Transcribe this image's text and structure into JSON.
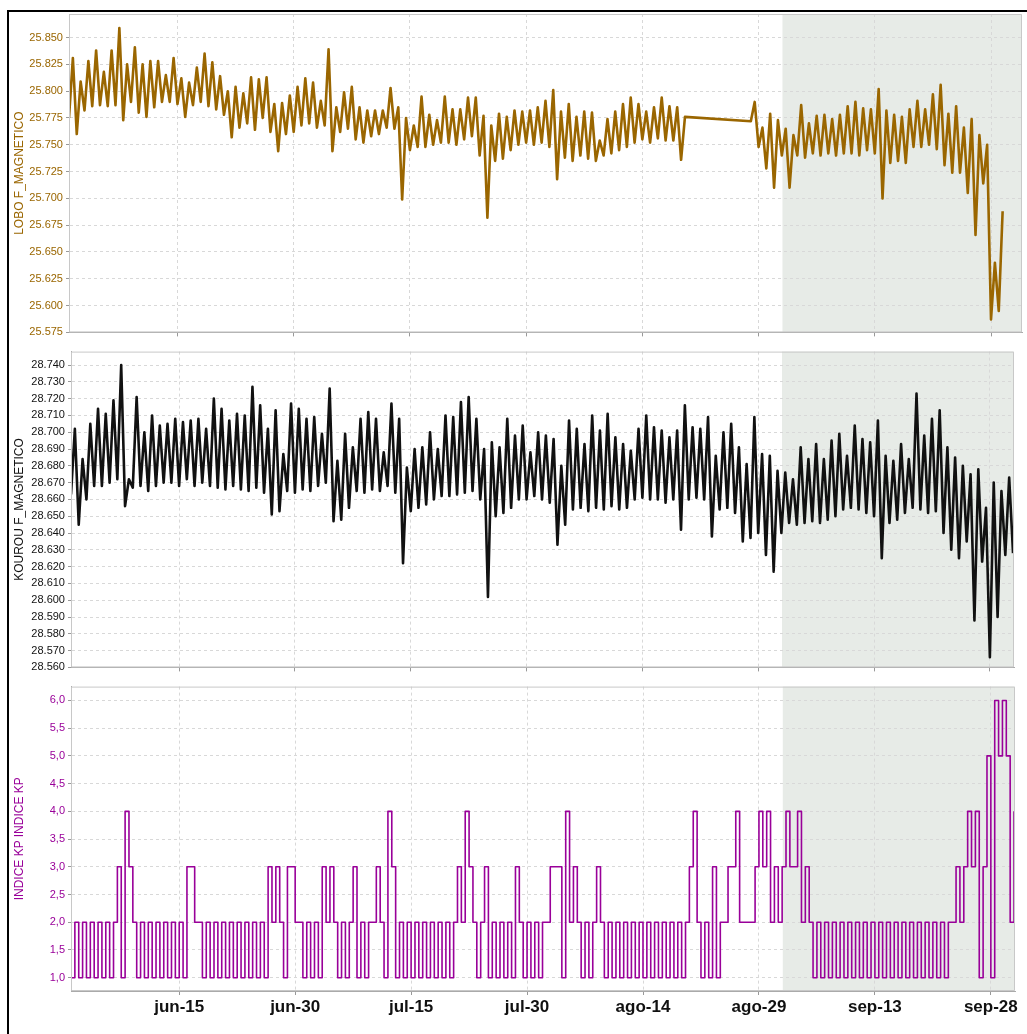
{
  "chart_data": [
    {
      "type": "line",
      "ylabel": "LOBO F_MAGNETICO",
      "color": "#9a6600",
      "grid": true,
      "marker": "none",
      "tick_labels": "y",
      "xlim": [
        "--06-01",
        "--10-02"
      ],
      "ylim": [
        25575,
        25872
      ],
      "xticks": [
        {
          "value": "--06-15",
          "label": "jun-15"
        },
        {
          "value": "--06-30",
          "label": "jun-30"
        },
        {
          "value": "--07-15",
          "label": "jul-15"
        },
        {
          "value": "--07-30",
          "label": "jul-30"
        },
        {
          "value": "--08-14",
          "label": "ago-14"
        },
        {
          "value": "--08-29",
          "label": "ago-29"
        },
        {
          "value": "--09-13",
          "label": "sep-13"
        },
        {
          "value": "--09-28",
          "label": "sep-28"
        }
      ],
      "yticks": [
        {
          "value": 25575,
          "label": "25.575"
        },
        {
          "value": 25600,
          "label": "25.600"
        },
        {
          "value": 25625,
          "label": "25.625"
        },
        {
          "value": 25650,
          "label": "25.650"
        },
        {
          "value": 25675,
          "label": "25.675"
        },
        {
          "value": 25700,
          "label": "25.700"
        },
        {
          "value": 25725,
          "label": "25.725"
        },
        {
          "value": 25750,
          "label": "25.750"
        },
        {
          "value": 25775,
          "label": "25.775"
        },
        {
          "value": 25800,
          "label": "25.800"
        },
        {
          "value": 25825,
          "label": "25.825"
        },
        {
          "value": 25850,
          "label": "25.850"
        }
      ],
      "bands": [
        {
          "axis": "x",
          "from": "--09-01T02:00",
          "to": "--10-02",
          "color": "#e7ebe7"
        }
      ],
      "x": [
        "--06-01T00:00",
        "--06-01T12:00",
        "--06-02T00:00",
        "--06-02T12:00",
        "--06-03T00:00",
        "--06-03T12:00",
        "--06-04T00:00",
        "--06-04T12:00",
        "--06-05T00:00",
        "--06-05T12:00",
        "--06-06T00:00",
        "--06-06T12:00",
        "--06-07T00:00",
        "--06-07T12:00",
        "--06-08T00:00",
        "--06-08T12:00",
        "--06-09T00:00",
        "--06-09T12:00",
        "--06-10T00:00",
        "--06-10T12:00",
        "--06-11T00:00",
        "--06-11T12:00",
        "--06-12T00:00",
        "--06-12T12:00",
        "--06-13T00:00",
        "--06-13T12:00",
        "--06-14T00:00",
        "--06-14T12:00",
        "--06-15T00:00",
        "--06-15T12:00",
        "--06-16T00:00",
        "--06-16T12:00",
        "--06-17T00:00",
        "--06-17T12:00",
        "--06-18T00:00",
        "--06-18T12:00",
        "--06-19T00:00",
        "--06-19T12:00",
        "--06-20T00:00",
        "--06-20T12:00",
        "--06-21T00:00",
        "--06-21T12:00",
        "--06-22T00:00",
        "--06-22T12:00",
        "--06-23T00:00",
        "--06-23T12:00",
        "--06-24T00:00",
        "--06-24T12:00",
        "--06-25T00:00",
        "--06-25T12:00",
        "--06-26T00:00",
        "--06-26T12:00",
        "--06-27T00:00",
        "--06-27T12:00",
        "--06-28T00:00",
        "--06-28T12:00",
        "--06-29T00:00",
        "--06-29T12:00",
        "--06-30T00:00",
        "--06-30T12:00",
        "--07-01T00:00",
        "--07-01T12:00",
        "--07-02T00:00",
        "--07-02T12:00",
        "--07-03T00:00",
        "--07-03T12:00",
        "--07-04T00:00",
        "--07-04T12:00",
        "--07-05T00:00",
        "--07-05T12:00",
        "--07-06T00:00",
        "--07-06T12:00",
        "--07-07T00:00",
        "--07-07T12:00",
        "--07-08T00:00",
        "--07-08T12:00",
        "--07-09T00:00",
        "--07-09T12:00",
        "--07-10T00:00",
        "--07-10T12:00",
        "--07-11T00:00",
        "--07-11T12:00",
        "--07-12T00:00",
        "--07-12T12:00",
        "--07-13T00:00",
        "--07-13T12:00",
        "--07-14T00:00",
        "--07-14T12:00",
        "--07-15T00:00",
        "--07-15T12:00",
        "--07-16T00:00",
        "--07-16T12:00",
        "--07-17T00:00",
        "--07-17T12:00",
        "--07-18T00:00",
        "--07-18T12:00",
        "--07-19T00:00",
        "--07-19T12:00",
        "--07-20T00:00",
        "--07-20T12:00",
        "--07-21T00:00",
        "--07-21T12:00",
        "--07-22T00:00",
        "--07-22T12:00",
        "--07-23T00:00",
        "--07-23T12:00",
        "--07-24T00:00",
        "--07-24T12:00",
        "--07-25T00:00",
        "--07-25T12:00",
        "--07-26T00:00",
        "--07-26T12:00",
        "--07-27T00:00",
        "--07-27T12:00",
        "--07-28T00:00",
        "--07-28T12:00",
        "--07-29T00:00",
        "--07-29T12:00",
        "--07-30T00:00",
        "--07-30T12:00",
        "--07-31T00:00",
        "--07-31T12:00",
        "--08-01T00:00",
        "--08-01T12:00",
        "--08-02T00:00",
        "--08-02T12:00",
        "--08-03T00:00",
        "--08-03T12:00",
        "--08-04T00:00",
        "--08-04T12:00",
        "--08-05T00:00",
        "--08-05T12:00",
        "--08-06T00:00",
        "--08-06T12:00",
        "--08-07T00:00",
        "--08-07T12:00",
        "--08-08T00:00",
        "--08-08T12:00",
        "--08-09T00:00",
        "--08-09T12:00",
        "--08-10T00:00",
        "--08-10T12:00",
        "--08-11T00:00",
        "--08-11T12:00",
        "--08-12T00:00",
        "--08-12T12:00",
        "--08-13T00:00",
        "--08-13T12:00",
        "--08-14T00:00",
        "--08-14T12:00",
        "--08-15T00:00",
        "--08-15T12:00",
        "--08-16T00:00",
        "--08-16T12:00",
        "--08-17T00:00",
        "--08-17T12:00",
        "--08-18T00:00",
        "--08-18T12:00",
        "--08-19T00:00",
        "--08-19T12:00",
        "--08-28T00:00",
        "--08-28T12:00",
        "--08-29T00:00",
        "--08-29T12:00",
        "--08-30T00:00",
        "--08-30T12:00",
        "--08-31T00:00",
        "--08-31T12:00",
        "--09-01T00:00",
        "--09-01T12:00",
        "--09-02T00:00",
        "--09-02T12:00",
        "--09-03T00:00",
        "--09-03T12:00",
        "--09-04T00:00",
        "--09-04T12:00",
        "--09-05T00:00",
        "--09-05T12:00",
        "--09-06T00:00",
        "--09-06T12:00",
        "--09-07T00:00",
        "--09-07T12:00",
        "--09-08T00:00",
        "--09-08T12:00",
        "--09-09T00:00",
        "--09-09T12:00",
        "--09-10T00:00",
        "--09-10T12:00",
        "--09-11T00:00",
        "--09-11T12:00",
        "--09-12T00:00",
        "--09-12T12:00",
        "--09-13T00:00",
        "--09-13T12:00",
        "--09-14T00:00",
        "--09-14T12:00",
        "--09-15T00:00",
        "--09-15T12:00",
        "--09-16T00:00",
        "--09-16T12:00",
        "--09-17T00:00",
        "--09-17T12:00",
        "--09-18T00:00",
        "--09-18T12:00",
        "--09-19T00:00",
        "--09-19T12:00",
        "--09-20T00:00",
        "--09-20T12:00",
        "--09-21T00:00",
        "--09-21T12:00",
        "--09-22T00:00",
        "--09-22T12:00",
        "--09-23T00:00",
        "--09-23T12:00",
        "--09-24T00:00",
        "--09-24T12:00",
        "--09-25T00:00",
        "--09-25T12:00",
        "--09-26T00:00",
        "--09-26T12:00",
        "--09-27T00:00",
        "--09-27T12:00",
        "--09-28T00:00",
        "--09-28T12:00",
        "--09-29T00:00",
        "--09-29T12:00"
      ],
      "values": [
        25775,
        25831,
        25760,
        25809,
        25782,
        25828,
        25786,
        25838,
        25787,
        25818,
        25786,
        25838,
        25787,
        25859,
        25773,
        25825,
        25790,
        25841,
        25780,
        25825,
        25776,
        25828,
        25785,
        25828,
        25790,
        25815,
        25790,
        25831,
        25788,
        25812,
        25776,
        25808,
        25787,
        25822,
        25790,
        25835,
        25786,
        25827,
        25783,
        25814,
        25778,
        25800,
        25757,
        25804,
        25766,
        25798,
        25770,
        25813,
        25764,
        25811,
        25775,
        25813,
        25762,
        25788,
        25744,
        25789,
        25760,
        25796,
        25762,
        25804,
        25768,
        25812,
        25770,
        25808,
        25766,
        25791,
        25768,
        25839,
        25744,
        25785,
        25762,
        25799,
        25765,
        25804,
        25755,
        25785,
        25752,
        25782,
        25758,
        25782,
        25760,
        25782,
        25766,
        25803,
        25765,
        25785,
        25699,
        25775,
        25745,
        25768,
        25748,
        25795,
        25748,
        25778,
        25750,
        25773,
        25752,
        25795,
        25752,
        25783,
        25750,
        25783,
        25755,
        25794,
        25758,
        25794,
        25740,
        25777,
        25682,
        25768,
        25735,
        25779,
        25737,
        25776,
        25745,
        25782,
        25750,
        25781,
        25752,
        25782,
        25750,
        25785,
        25752,
        25791,
        25748,
        25801,
        25718,
        25781,
        25738,
        25788,
        25735,
        25776,
        25740,
        25781,
        25737,
        25780,
        25735,
        25754,
        25740,
        25774,
        25742,
        25781,
        25745,
        25788,
        25748,
        25794,
        25752,
        25788,
        25755,
        25781,
        25752,
        25785,
        25756,
        25794,
        25754,
        25786,
        25754,
        25785,
        25736,
        25776,
        25772,
        25790,
        25748,
        25766,
        25728,
        25779,
        25710,
        25773,
        25740,
        25765,
        25710,
        25759,
        25740,
        25787,
        25738,
        25770,
        25742,
        25777,
        25740,
        25778,
        25742,
        25774,
        25740,
        25778,
        25742,
        25786,
        25742,
        25790,
        25740,
        25784,
        25745,
        25783,
        25742,
        25802,
        25700,
        25782,
        25733,
        25778,
        25735,
        25776,
        25733,
        25783,
        25748,
        25791,
        25748,
        25783,
        25750,
        25797,
        25746,
        25806,
        25731,
        25779,
        25724,
        25786,
        25724,
        25766,
        25705,
        25774,
        25666,
        25759,
        25714,
        25750,
        25587,
        25640,
        25595,
        25688
      ]
    },
    {
      "type": "line",
      "ylabel": "KOUROU F_MAGNETICO",
      "color": "#111111",
      "grid": true,
      "marker": "none",
      "tick_labels": "y",
      "xlim": [
        "--06-01",
        "--10-01T03:00"
      ],
      "ylim": [
        28560,
        28748
      ],
      "xticks": [
        {
          "value": "--06-15",
          "label": "jun-15"
        },
        {
          "value": "--06-30",
          "label": "jun-30"
        },
        {
          "value": "--07-15",
          "label": "jul-15"
        },
        {
          "value": "--07-30",
          "label": "jul-30"
        },
        {
          "value": "--08-14",
          "label": "ago-14"
        },
        {
          "value": "--08-29",
          "label": "ago-29"
        },
        {
          "value": "--09-13",
          "label": "sep-13"
        },
        {
          "value": "--09-28",
          "label": "sep-28"
        }
      ],
      "yticks": [
        {
          "value": 28560,
          "label": "28.560"
        },
        {
          "value": 28570,
          "label": "28.570"
        },
        {
          "value": 28580,
          "label": "28.580"
        },
        {
          "value": 28590,
          "label": "28.590"
        },
        {
          "value": 28600,
          "label": "28.600"
        },
        {
          "value": 28610,
          "label": "28.610"
        },
        {
          "value": 28620,
          "label": "28.620"
        },
        {
          "value": 28630,
          "label": "28.630"
        },
        {
          "value": 28640,
          "label": "28.640"
        },
        {
          "value": 28650,
          "label": "28.650"
        },
        {
          "value": 28660,
          "label": "28.660"
        },
        {
          "value": 28670,
          "label": "28.670"
        },
        {
          "value": 28680,
          "label": "28.680"
        },
        {
          "value": 28690,
          "label": "28.690"
        },
        {
          "value": 28700,
          "label": "28.700"
        },
        {
          "value": 28710,
          "label": "28.710"
        },
        {
          "value": 28720,
          "label": "28.720"
        },
        {
          "value": 28730,
          "label": "28.730"
        },
        {
          "value": 28740,
          "label": "28.740"
        }
      ],
      "bands": [
        {
          "axis": "x",
          "from": "--09-01T02:00",
          "to": "--10-01T03:00",
          "color": "#e7ebe7"
        }
      ],
      "x": [
        "--06-01T00:00",
        "--06-01T12:00",
        "--06-02T00:00",
        "--06-02T12:00",
        "--06-03T00:00",
        "--06-03T12:00",
        "--06-04T00:00",
        "--06-04T12:00",
        "--06-05T00:00",
        "--06-05T12:00",
        "--06-06T00:00",
        "--06-06T12:00",
        "--06-07T00:00",
        "--06-07T12:00",
        "--06-08T00:00",
        "--06-08T12:00",
        "--06-09T00:00",
        "--06-09T12:00",
        "--06-10T00:00",
        "--06-10T12:00",
        "--06-11T00:00",
        "--06-11T12:00",
        "--06-12T00:00",
        "--06-12T12:00",
        "--06-13T00:00",
        "--06-13T12:00",
        "--06-14T00:00",
        "--06-14T12:00",
        "--06-15T00:00",
        "--06-15T12:00",
        "--06-16T00:00",
        "--06-16T12:00",
        "--06-17T00:00",
        "--06-17T12:00",
        "--06-18T00:00",
        "--06-18T12:00",
        "--06-19T00:00",
        "--06-19T12:00",
        "--06-20T00:00",
        "--06-20T12:00",
        "--06-21T00:00",
        "--06-21T12:00",
        "--06-22T00:00",
        "--06-22T12:00",
        "--06-23T00:00",
        "--06-23T12:00",
        "--06-24T00:00",
        "--06-24T12:00",
        "--06-25T00:00",
        "--06-25T12:00",
        "--06-26T00:00",
        "--06-26T12:00",
        "--06-27T00:00",
        "--06-27T12:00",
        "--06-28T00:00",
        "--06-28T12:00",
        "--06-29T00:00",
        "--06-29T12:00",
        "--06-30T00:00",
        "--06-30T12:00",
        "--07-01T00:00",
        "--07-01T12:00",
        "--07-02T00:00",
        "--07-02T12:00",
        "--07-03T00:00",
        "--07-03T12:00",
        "--07-04T00:00",
        "--07-04T12:00",
        "--07-05T00:00",
        "--07-05T12:00",
        "--07-06T00:00",
        "--07-06T12:00",
        "--07-07T00:00",
        "--07-07T12:00",
        "--07-08T00:00",
        "--07-08T12:00",
        "--07-09T00:00",
        "--07-09T12:00",
        "--07-10T00:00",
        "--07-10T12:00",
        "--07-11T00:00",
        "--07-11T12:00",
        "--07-12T00:00",
        "--07-12T12:00",
        "--07-13T00:00",
        "--07-13T12:00",
        "--07-14T00:00",
        "--07-14T12:00",
        "--07-15T00:00",
        "--07-15T12:00",
        "--07-16T00:00",
        "--07-16T12:00",
        "--07-17T00:00",
        "--07-17T12:00",
        "--07-18T00:00",
        "--07-18T12:00",
        "--07-19T00:00",
        "--07-19T12:00",
        "--07-20T00:00",
        "--07-20T12:00",
        "--07-21T00:00",
        "--07-21T12:00",
        "--07-22T00:00",
        "--07-22T12:00",
        "--07-23T00:00",
        "--07-23T12:00",
        "--07-24T00:00",
        "--07-24T12:00",
        "--07-25T00:00",
        "--07-25T12:00",
        "--07-26T00:00",
        "--07-26T12:00",
        "--07-27T00:00",
        "--07-27T12:00",
        "--07-28T00:00",
        "--07-28T12:00",
        "--07-29T00:00",
        "--07-29T12:00",
        "--07-30T00:00",
        "--07-30T12:00",
        "--07-31T00:00",
        "--07-31T12:00",
        "--08-01T00:00",
        "--08-01T12:00",
        "--08-02T00:00",
        "--08-02T12:00",
        "--08-03T00:00",
        "--08-03T12:00",
        "--08-04T00:00",
        "--08-04T12:00",
        "--08-05T00:00",
        "--08-05T12:00",
        "--08-06T00:00",
        "--08-06T12:00",
        "--08-07T00:00",
        "--08-07T12:00",
        "--08-08T00:00",
        "--08-08T12:00",
        "--08-09T00:00",
        "--08-09T12:00",
        "--08-10T00:00",
        "--08-10T12:00",
        "--08-11T00:00",
        "--08-11T12:00",
        "--08-12T00:00",
        "--08-12T12:00",
        "--08-13T00:00",
        "--08-13T12:00",
        "--08-14T00:00",
        "--08-14T12:00",
        "--08-15T00:00",
        "--08-15T12:00",
        "--08-16T00:00",
        "--08-16T12:00",
        "--08-17T00:00",
        "--08-17T12:00",
        "--08-18T00:00",
        "--08-18T12:00",
        "--08-19T00:00",
        "--08-19T12:00",
        "--08-20T00:00",
        "--08-20T12:00",
        "--08-21T00:00",
        "--08-21T12:00",
        "--08-22T00:00",
        "--08-22T12:00",
        "--08-23T00:00",
        "--08-23T12:00",
        "--08-24T00:00",
        "--08-24T12:00",
        "--08-25T00:00",
        "--08-25T12:00",
        "--08-26T00:00",
        "--08-26T12:00",
        "--08-27T00:00",
        "--08-27T12:00",
        "--08-28T00:00",
        "--08-28T12:00",
        "--08-29T00:00",
        "--08-29T12:00",
        "--08-30T00:00",
        "--08-30T12:00",
        "--08-31T00:00",
        "--08-31T12:00",
        "--09-01T00:00",
        "--09-01T12:00",
        "--09-02T00:00",
        "--09-02T12:00",
        "--09-03T00:00",
        "--09-03T12:00",
        "--09-04T00:00",
        "--09-04T12:00",
        "--09-05T00:00",
        "--09-05T12:00",
        "--09-06T00:00",
        "--09-06T12:00",
        "--09-07T00:00",
        "--09-07T12:00",
        "--09-08T00:00",
        "--09-08T12:00",
        "--09-09T00:00",
        "--09-09T12:00",
        "--09-10T00:00",
        "--09-10T12:00",
        "--09-11T00:00",
        "--09-11T12:00",
        "--09-12T00:00",
        "--09-12T12:00",
        "--09-13T00:00",
        "--09-13T12:00",
        "--09-14T00:00",
        "--09-14T12:00",
        "--09-15T00:00",
        "--09-15T12:00",
        "--09-16T00:00",
        "--09-16T12:00",
        "--09-17T00:00",
        "--09-17T12:00",
        "--09-18T00:00",
        "--09-18T12:00",
        "--09-19T00:00",
        "--09-19T12:00",
        "--09-20T00:00",
        "--09-20T12:00",
        "--09-21T00:00",
        "--09-21T12:00",
        "--09-22T00:00",
        "--09-22T12:00",
        "--09-23T00:00",
        "--09-23T12:00",
        "--09-24T00:00",
        "--09-24T12:00",
        "--09-25T00:00",
        "--09-25T12:00",
        "--09-26T00:00",
        "--09-26T12:00",
        "--09-27T00:00",
        "--09-27T12:00",
        "--09-28T00:00",
        "--09-28T12:00",
        "--09-29T00:00",
        "--09-29T12:00",
        "--09-30T00:00",
        "--09-30T12:00",
        "--10-01T00:00"
      ],
      "values": [
        28663,
        28702,
        28645,
        28684,
        28660,
        28705,
        28668,
        28714,
        28668,
        28711,
        28670,
        28719,
        28672,
        28740,
        28656,
        28672,
        28667,
        28721,
        28668,
        28700,
        28665,
        28710,
        28668,
        28704,
        28670,
        28705,
        28670,
        28708,
        28668,
        28706,
        28672,
        28707,
        28668,
        28708,
        28670,
        28702,
        28668,
        28720,
        28667,
        28714,
        28666,
        28707,
        28668,
        28711,
        28666,
        28710,
        28665,
        28727,
        28667,
        28716,
        28664,
        28702,
        28651,
        28713,
        28653,
        28687,
        28665,
        28717,
        28664,
        28714,
        28666,
        28708,
        28665,
        28709,
        28668,
        28699,
        28670,
        28726,
        28647,
        28683,
        28648,
        28699,
        28655,
        28691,
        28665,
        28708,
        28664,
        28712,
        28666,
        28708,
        28665,
        28688,
        28668,
        28717,
        28664,
        28708,
        28622,
        28679,
        28653,
        28690,
        28655,
        28691,
        28657,
        28700,
        28660,
        28690,
        28662,
        28710,
        28662,
        28709,
        28663,
        28718,
        28664,
        28721,
        28665,
        28708,
        28660,
        28690,
        28602,
        28694,
        28650,
        28691,
        28652,
        28708,
        28655,
        28698,
        28660,
        28704,
        28660,
        28688,
        28662,
        28700,
        28660,
        28698,
        28658,
        28696,
        28633,
        28680,
        28645,
        28707,
        28654,
        28702,
        28655,
        28693,
        28653,
        28710,
        28655,
        28701,
        28654,
        28711,
        28656,
        28697,
        28654,
        28693,
        28655,
        28689,
        28660,
        28702,
        28661,
        28710,
        28660,
        28703,
        28660,
        28701,
        28658,
        28697,
        28660,
        28701,
        28642,
        28716,
        28660,
        28703,
        28661,
        28702,
        28660,
        28709,
        28638,
        28686,
        28654,
        28700,
        28655,
        28705,
        28652,
        28691,
        28635,
        28681,
        28637,
        28709,
        28640,
        28687,
        28627,
        28686,
        28617,
        28677,
        28640,
        28676,
        28646,
        28672,
        28645,
        28691,
        28646,
        28684,
        28647,
        28693,
        28646,
        28684,
        28648,
        28695,
        28650,
        28699,
        28654,
        28686,
        28655,
        28704,
        28654,
        28696,
        28652,
        28694,
        28650,
        28707,
        28625,
        28686,
        28646,
        28683,
        28648,
        28693,
        28652,
        28684,
        28655,
        28723,
        28654,
        28698,
        28652,
        28708,
        28653,
        28713,
        28640,
        28691,
        28630,
        28685,
        28625,
        28680,
        28635,
        28675,
        28588,
        28678,
        28623,
        28655,
        28566,
        28670,
        28590,
        28665,
        28627,
        28673,
        28628
      ]
    },
    {
      "type": "step",
      "ylabel": "INDICE KP INDICE KP",
      "color": "#990099",
      "grid": true,
      "marker": "none",
      "xlim": [
        "--06-01",
        "--10-01T03:00"
      ],
      "ylim": [
        0.76,
        6.25
      ],
      "xticks": [
        {
          "value": "--06-15",
          "label": "jun-15"
        },
        {
          "value": "--06-30",
          "label": "jun-30"
        },
        {
          "value": "--07-15",
          "label": "jul-15"
        },
        {
          "value": "--07-30",
          "label": "jul-30"
        },
        {
          "value": "--08-14",
          "label": "ago-14"
        },
        {
          "value": "--08-29",
          "label": "ago-29"
        },
        {
          "value": "--09-13",
          "label": "sep-13"
        },
        {
          "value": "--09-28",
          "label": "sep-28"
        }
      ],
      "yticks": [
        {
          "value": 1,
          "label": "1,0"
        },
        {
          "value": 1.5,
          "label": "1,5"
        },
        {
          "value": 2,
          "label": "2,0"
        },
        {
          "value": 2.5,
          "label": "2,5"
        },
        {
          "value": 3,
          "label": "3,0"
        },
        {
          "value": 3.5,
          "label": "3,5"
        },
        {
          "value": 4,
          "label": "4,0"
        },
        {
          "value": 4.5,
          "label": "4,5"
        },
        {
          "value": 5,
          "label": "5,0"
        },
        {
          "value": 5.5,
          "label": "5,5"
        },
        {
          "value": 6,
          "label": "6,0"
        }
      ],
      "bands": [
        {
          "axis": "x",
          "from": "--09-01T02:00",
          "to": "--10-01T03:00",
          "color": "#e7ebe7"
        }
      ],
      "x": [
        "--06-01T00:00",
        "--06-01T12:00",
        "--06-02T00:00",
        "--06-02T12:00",
        "--06-03T00:00",
        "--06-03T12:00",
        "--06-04T00:00",
        "--06-04T12:00",
        "--06-05T00:00",
        "--06-05T12:00",
        "--06-06T00:00",
        "--06-06T12:00",
        "--06-07T00:00",
        "--06-07T12:00",
        "--06-08T00:00",
        "--06-08T12:00",
        "--06-09T00:00",
        "--06-09T12:00",
        "--06-10T00:00",
        "--06-10T12:00",
        "--06-11T00:00",
        "--06-11T12:00",
        "--06-12T00:00",
        "--06-12T12:00",
        "--06-13T00:00",
        "--06-13T12:00",
        "--06-14T00:00",
        "--06-14T12:00",
        "--06-15T00:00",
        "--06-15T12:00",
        "--06-16T00:00",
        "--06-16T12:00",
        "--06-17T00:00",
        "--06-17T12:00",
        "--06-18T00:00",
        "--06-18T12:00",
        "--06-19T00:00",
        "--06-19T12:00",
        "--06-20T00:00",
        "--06-20T12:00",
        "--06-21T00:00",
        "--06-21T12:00",
        "--06-22T00:00",
        "--06-22T12:00",
        "--06-23T00:00",
        "--06-23T12:00",
        "--06-24T00:00",
        "--06-24T12:00",
        "--06-25T00:00",
        "--06-25T12:00",
        "--06-26T00:00",
        "--06-26T12:00",
        "--06-27T00:00",
        "--06-27T12:00",
        "--06-28T00:00",
        "--06-28T12:00",
        "--06-29T00:00",
        "--06-29T12:00",
        "--06-30T00:00",
        "--06-30T12:00",
        "--07-01T00:00",
        "--07-01T12:00",
        "--07-02T00:00",
        "--07-02T12:00",
        "--07-03T00:00",
        "--07-03T12:00",
        "--07-04T00:00",
        "--07-04T12:00",
        "--07-05T00:00",
        "--07-05T12:00",
        "--07-06T00:00",
        "--07-06T12:00",
        "--07-07T00:00",
        "--07-07T12:00",
        "--07-08T00:00",
        "--07-08T12:00",
        "--07-09T00:00",
        "--07-09T12:00",
        "--07-10T00:00",
        "--07-10T12:00",
        "--07-11T00:00",
        "--07-11T12:00",
        "--07-12T00:00",
        "--07-12T12:00",
        "--07-13T00:00",
        "--07-13T12:00",
        "--07-14T00:00",
        "--07-14T12:00",
        "--07-15T00:00",
        "--07-15T12:00",
        "--07-16T00:00",
        "--07-16T12:00",
        "--07-17T00:00",
        "--07-17T12:00",
        "--07-18T00:00",
        "--07-18T12:00",
        "--07-19T00:00",
        "--07-19T12:00",
        "--07-20T00:00",
        "--07-20T12:00",
        "--07-21T00:00",
        "--07-21T12:00",
        "--07-22T00:00",
        "--07-22T12:00",
        "--07-23T00:00",
        "--07-23T12:00",
        "--07-24T00:00",
        "--07-24T12:00",
        "--07-25T00:00",
        "--07-25T12:00",
        "--07-26T00:00",
        "--07-26T12:00",
        "--07-27T00:00",
        "--07-27T12:00",
        "--07-28T00:00",
        "--07-28T12:00",
        "--07-29T00:00",
        "--07-29T12:00",
        "--07-30T00:00",
        "--07-30T12:00",
        "--07-31T00:00",
        "--07-31T12:00",
        "--08-01T00:00",
        "--08-01T12:00",
        "--08-02T00:00",
        "--08-02T12:00",
        "--08-03T00:00",
        "--08-03T12:00",
        "--08-04T00:00",
        "--08-04T12:00",
        "--08-05T00:00",
        "--08-05T12:00",
        "--08-06T00:00",
        "--08-06T12:00",
        "--08-07T00:00",
        "--08-07T12:00",
        "--08-08T00:00",
        "--08-08T12:00",
        "--08-09T00:00",
        "--08-09T12:00",
        "--08-10T00:00",
        "--08-10T12:00",
        "--08-11T00:00",
        "--08-11T12:00",
        "--08-12T00:00",
        "--08-12T12:00",
        "--08-13T00:00",
        "--08-13T12:00",
        "--08-14T00:00",
        "--08-14T12:00",
        "--08-15T00:00",
        "--08-15T12:00",
        "--08-16T00:00",
        "--08-16T12:00",
        "--08-17T00:00",
        "--08-17T12:00",
        "--08-18T00:00",
        "--08-18T12:00",
        "--08-19T00:00",
        "--08-19T12:00",
        "--08-20T00:00",
        "--08-20T12:00",
        "--08-21T00:00",
        "--08-21T12:00",
        "--08-22T00:00",
        "--08-22T12:00",
        "--08-23T00:00",
        "--08-23T12:00",
        "--08-24T00:00",
        "--08-24T12:00",
        "--08-25T00:00",
        "--08-25T12:00",
        "--08-26T00:00",
        "--08-26T12:00",
        "--08-27T00:00",
        "--08-27T12:00",
        "--08-28T00:00",
        "--08-28T12:00",
        "--08-29T00:00",
        "--08-29T12:00",
        "--08-30T00:00",
        "--08-30T12:00",
        "--08-31T00:00",
        "--08-31T12:00",
        "--09-01T00:00",
        "--09-01T12:00",
        "--09-02T00:00",
        "--09-02T12:00",
        "--09-03T00:00",
        "--09-03T12:00",
        "--09-04T00:00",
        "--09-04T12:00",
        "--09-05T00:00",
        "--09-05T12:00",
        "--09-06T00:00",
        "--09-06T12:00",
        "--09-07T00:00",
        "--09-07T12:00",
        "--09-08T00:00",
        "--09-08T12:00",
        "--09-09T00:00",
        "--09-09T12:00",
        "--09-10T00:00",
        "--09-10T12:00",
        "--09-11T00:00",
        "--09-11T12:00",
        "--09-12T00:00",
        "--09-12T12:00",
        "--09-13T00:00",
        "--09-13T12:00",
        "--09-14T00:00",
        "--09-14T12:00",
        "--09-15T00:00",
        "--09-15T12:00",
        "--09-16T00:00",
        "--09-16T12:00",
        "--09-17T00:00",
        "--09-17T12:00",
        "--09-18T00:00",
        "--09-18T12:00",
        "--09-19T00:00",
        "--09-19T12:00",
        "--09-20T00:00",
        "--09-20T12:00",
        "--09-21T00:00",
        "--09-21T12:00",
        "--09-22T00:00",
        "--09-22T12:00",
        "--09-23T00:00",
        "--09-23T12:00",
        "--09-24T00:00",
        "--09-24T12:00",
        "--09-25T00:00",
        "--09-25T12:00",
        "--09-26T00:00",
        "--09-26T12:00",
        "--09-27T00:00",
        "--09-27T12:00",
        "--09-28T00:00",
        "--09-28T12:00",
        "--09-29T00:00",
        "--09-29T12:00",
        "--09-30T00:00",
        "--09-30T12:00",
        "--10-01T00:00"
      ],
      "values": [
        1,
        2,
        1,
        2,
        1,
        2,
        1,
        2,
        1,
        2,
        1,
        2,
        3,
        1,
        4,
        3,
        2,
        1,
        2,
        1,
        2,
        1,
        2,
        1,
        2,
        1,
        2,
        1,
        2,
        1,
        3,
        3,
        2,
        2,
        1,
        2,
        1,
        2,
        1,
        2,
        1,
        2,
        1,
        2,
        1,
        2,
        1,
        2,
        1,
        2,
        1,
        3,
        2,
        3,
        2,
        1,
        3,
        3,
        2,
        2,
        1,
        2,
        1,
        2,
        1,
        3,
        2,
        3,
        2,
        1,
        2,
        1,
        2,
        3,
        1,
        2,
        1,
        2,
        2,
        3,
        2,
        1,
        4,
        3,
        1,
        2,
        1,
        2,
        1,
        2,
        1,
        2,
        1,
        2,
        1,
        2,
        1,
        2,
        1,
        2,
        3,
        2,
        4,
        3,
        2,
        1,
        2,
        3,
        1,
        2,
        1,
        2,
        1,
        2,
        1,
        3,
        2,
        1,
        2,
        1,
        2,
        1,
        2,
        2,
        3,
        3,
        3,
        1,
        4,
        2,
        3,
        2,
        1,
        2,
        1,
        2,
        3,
        2,
        1,
        2,
        1,
        2,
        1,
        2,
        1,
        2,
        1,
        2,
        1,
        2,
        1,
        2,
        1,
        2,
        1,
        2,
        1,
        2,
        1,
        2,
        3,
        4,
        2,
        1,
        2,
        1,
        3,
        1,
        2,
        2,
        3,
        3,
        4,
        2,
        2,
        2,
        2,
        3,
        4,
        3,
        4,
        2,
        3,
        2,
        3,
        4,
        3,
        3,
        4,
        2,
        3,
        2,
        1,
        2,
        1,
        2,
        1,
        2,
        1,
        2,
        1,
        2,
        1,
        2,
        1,
        2,
        1,
        2,
        1,
        2,
        1,
        2,
        1,
        2,
        1,
        2,
        1,
        2,
        1,
        2,
        1,
        2,
        1,
        2,
        1,
        2,
        1,
        2,
        2,
        3,
        2,
        3,
        4,
        3,
        4,
        1,
        3,
        5,
        1,
        6,
        5,
        6,
        5,
        2,
        4
      ]
    }
  ]
}
